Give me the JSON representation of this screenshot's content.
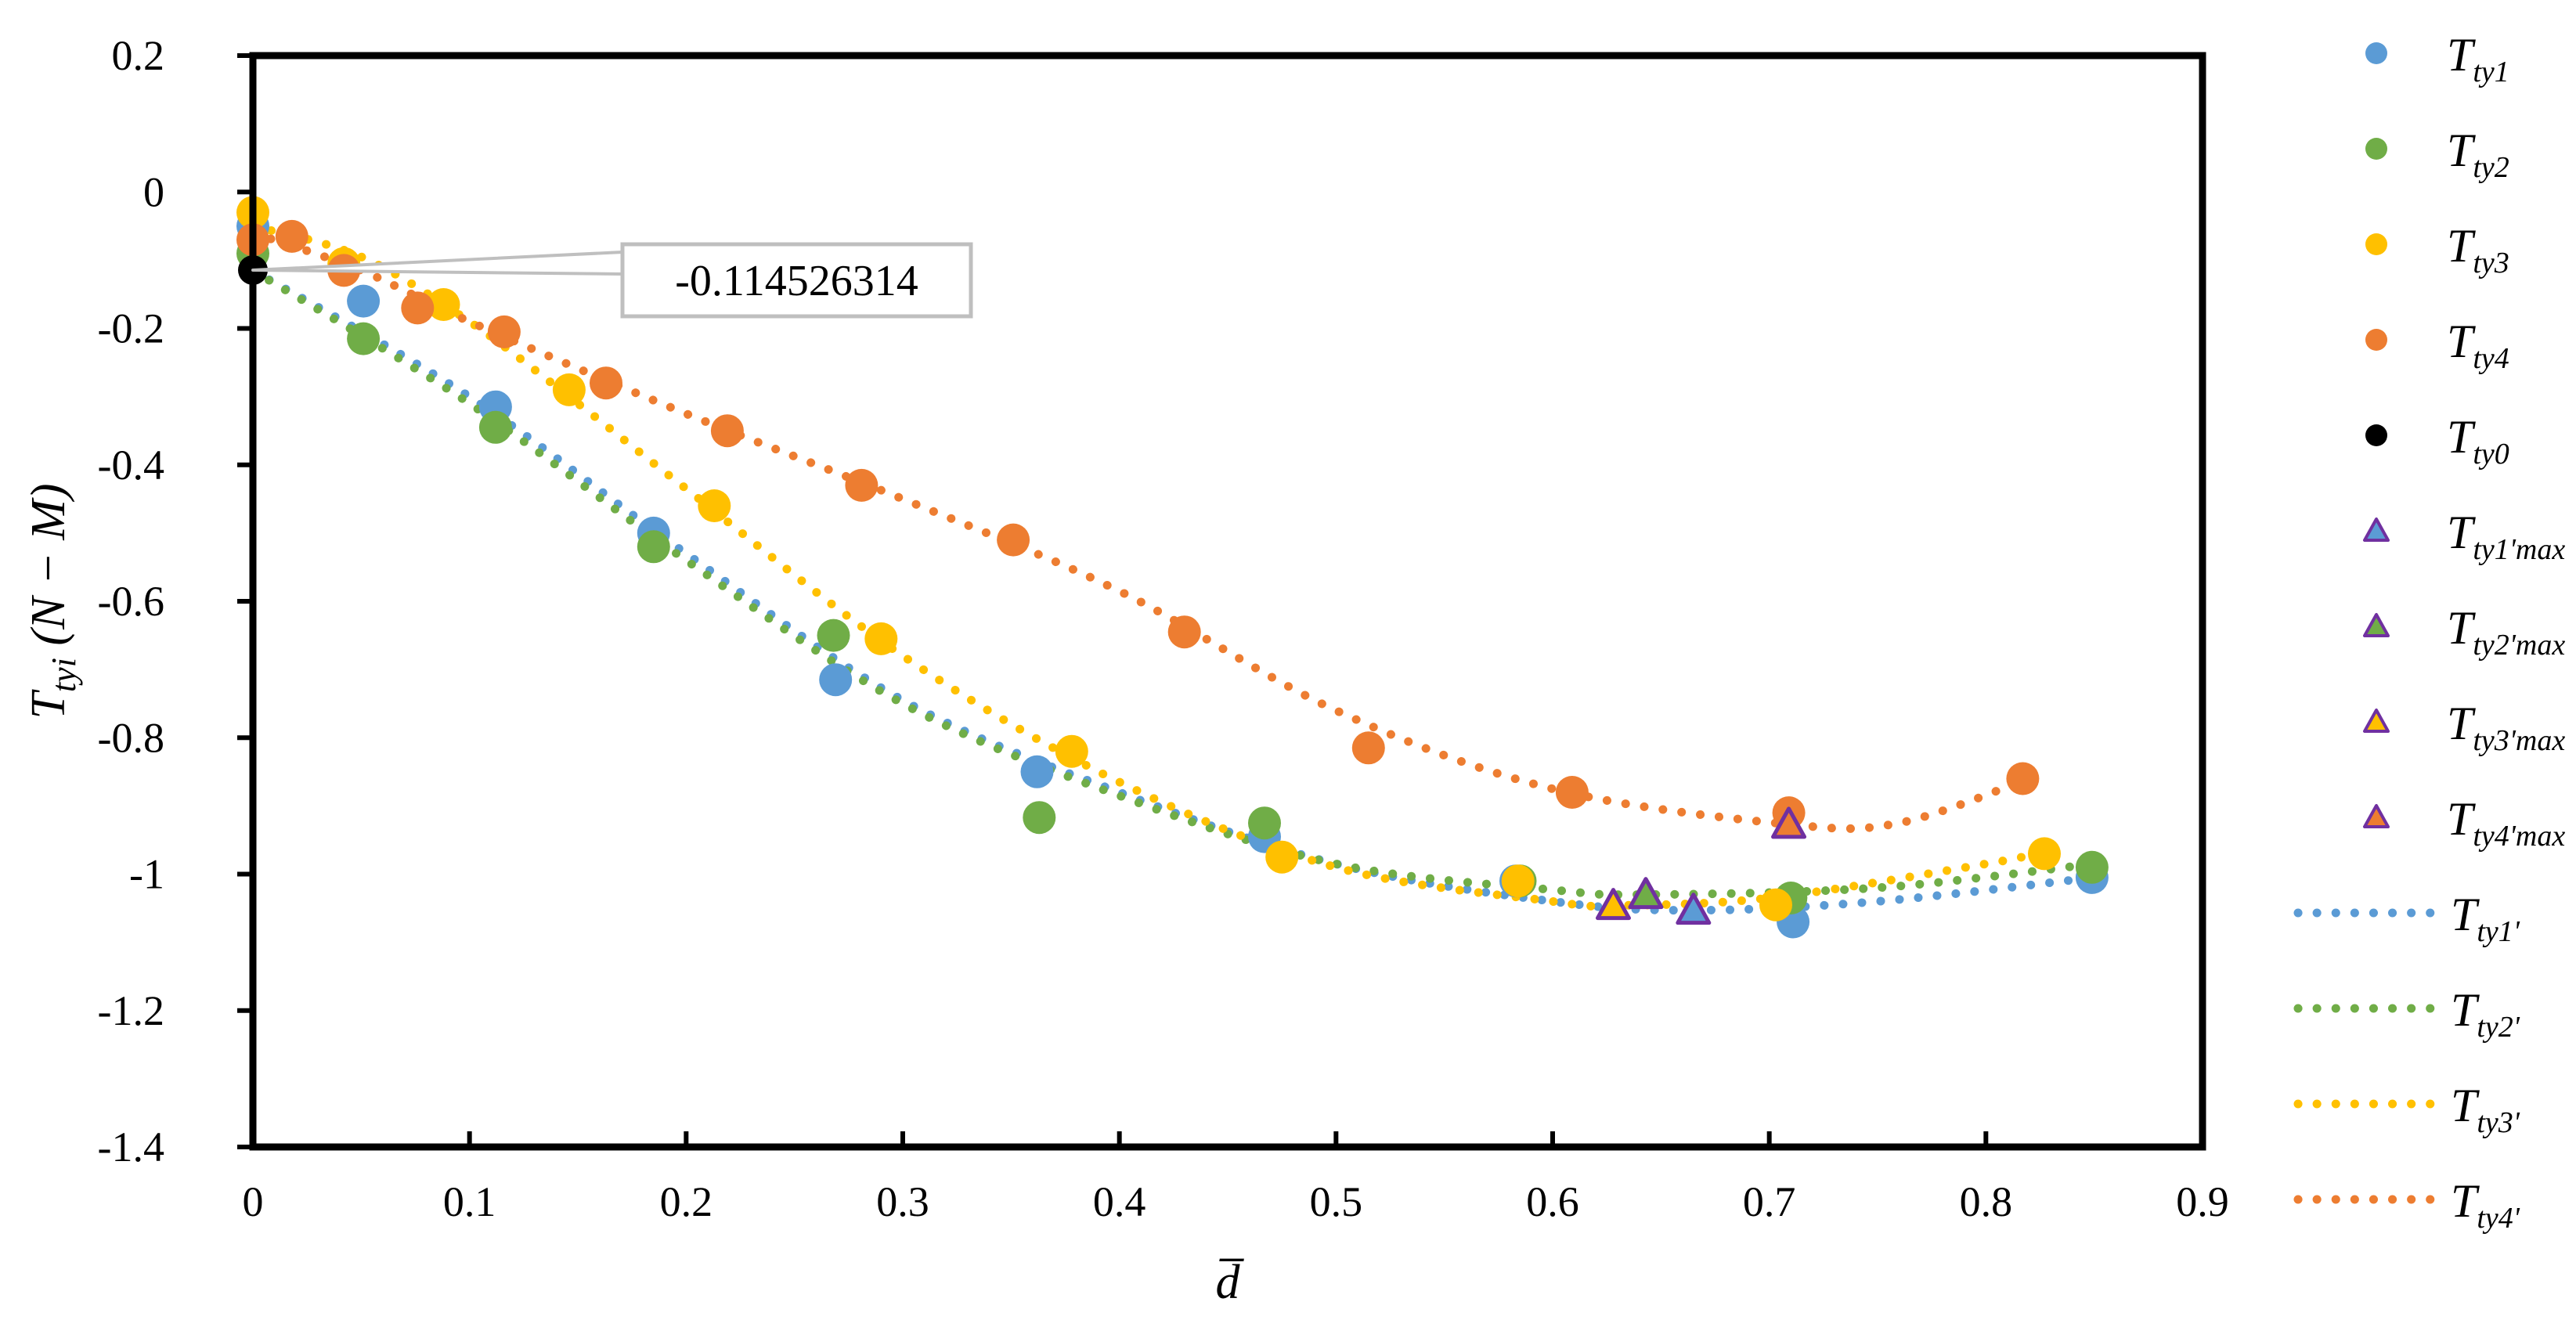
{
  "chart_data": {
    "type": "scatter",
    "xlabel": "d̅",
    "ylabel": "T_tyi (N − M)",
    "xlim": [
      0,
      0.9
    ],
    "ylim": [
      -1.4,
      0.2
    ],
    "xticks": [
      0,
      0.1,
      0.2,
      0.3,
      0.4,
      0.5,
      0.6,
      0.7,
      0.8,
      0.9
    ],
    "yticks": [
      0.2,
      0,
      -0.2,
      -0.4,
      -0.6,
      -0.8,
      -1,
      -1.2,
      -1.4
    ],
    "xtick_labels": [
      "0",
      "0.1",
      "0.2",
      "0.3",
      "0.4",
      "0.5",
      "0.6",
      "0.7",
      "0.8",
      "0.9"
    ],
    "ytick_labels": [
      "0.2",
      "0",
      "-0.2",
      "-0.4",
      "-0.6",
      "-0.8",
      "-1",
      "-1.2",
      "-1.4"
    ],
    "grid": false,
    "legend_position": "right",
    "colors": {
      "blue": "#5B9BD5",
      "green": "#70AD47",
      "yellow": "#FFC000",
      "orange": "#ED7D31",
      "black": "#000000",
      "purple": "#7030A0"
    },
    "series": [
      {
        "name": "Tty1",
        "main": "T",
        "sub": "ty1",
        "kind": "points",
        "color": "#5B9BD5",
        "x": [
          0,
          0.051,
          0.112,
          0.185,
          0.269,
          0.362,
          0.467,
          0.583,
          0.711,
          0.849
        ],
        "y": [
          -0.05,
          -0.16,
          -0.315,
          -0.5,
          -0.715,
          -0.85,
          -0.945,
          -1.01,
          -1.07,
          -1.005
        ]
      },
      {
        "name": "Tty2",
        "main": "T",
        "sub": "ty2",
        "kind": "points",
        "color": "#70AD47",
        "x": [
          0,
          0.051,
          0.112,
          0.185,
          0.268,
          0.363,
          0.467,
          0.585,
          0.71,
          0.849
        ],
        "y": [
          -0.09,
          -0.215,
          -0.345,
          -0.52,
          -0.65,
          -0.917,
          -0.925,
          -1.01,
          -1.035,
          -0.99
        ]
      },
      {
        "name": "Tty3",
        "main": "T",
        "sub": "ty3",
        "kind": "points",
        "color": "#FFC000",
        "x": [
          0,
          0.042,
          0.088,
          0.146,
          0.213,
          0.29,
          0.378,
          0.475,
          0.584,
          0.703,
          0.827
        ],
        "y": [
          -0.03,
          -0.105,
          -0.165,
          -0.29,
          -0.46,
          -0.655,
          -0.82,
          -0.975,
          -1.01,
          -1.045,
          -0.97
        ]
      },
      {
        "name": "Tty4",
        "main": "T",
        "sub": "ty4",
        "kind": "points",
        "color": "#ED7D31",
        "x": [
          0,
          0.018,
          0.042,
          0.076,
          0.116,
          0.163,
          0.219,
          0.281,
          0.351,
          0.43,
          0.515,
          0.609,
          0.709,
          0.817
        ],
        "y": [
          -0.07,
          -0.065,
          -0.115,
          -0.17,
          -0.205,
          -0.28,
          -0.35,
          -0.43,
          -0.51,
          -0.645,
          -0.815,
          -0.88,
          -0.91,
          -0.86
        ]
      },
      {
        "name": "Tty0",
        "main": "T",
        "sub": "ty0",
        "kind": "points",
        "color": "#000000",
        "x": [
          0
        ],
        "y": [
          -0.114526314
        ]
      },
      {
        "name": "Tty1'max",
        "main": "T",
        "sub": "ty1'max",
        "kind": "triangle",
        "color": "#7030A0",
        "fill": "#5B9BD5",
        "x": [
          0.665
        ],
        "y": [
          -1.053
        ]
      },
      {
        "name": "Tty2'max",
        "main": "T",
        "sub": "ty2'max",
        "kind": "triangle",
        "color": "#7030A0",
        "fill": "#70AD47",
        "x": [
          0.643
        ],
        "y": [
          -1.03
        ]
      },
      {
        "name": "Tty3'max",
        "main": "T",
        "sub": "ty3'max",
        "kind": "triangle",
        "color": "#7030A0",
        "fill": "#FFC000",
        "x": [
          0.628
        ],
        "y": [
          -1.046
        ]
      },
      {
        "name": "Tty4'max",
        "main": "T",
        "sub": "ty4'max",
        "kind": "triangle",
        "color": "#7030A0",
        "fill": "#ED7D31",
        "x": [
          0.709
        ],
        "y": [
          -0.927
        ]
      },
      {
        "name": "Tty1'",
        "main": "T",
        "sub": "ty1'",
        "kind": "trend",
        "color": "#5B9BD5",
        "x": [
          0,
          0.1,
          0.2,
          0.3,
          0.4,
          0.5,
          0.6,
          0.665,
          0.75,
          0.85
        ],
        "y": [
          -0.115,
          -0.3,
          -0.53,
          -0.745,
          -0.88,
          -0.985,
          -1.04,
          -1.053,
          -1.04,
          -1.005
        ]
      },
      {
        "name": "Tty2'",
        "main": "T",
        "sub": "ty2'",
        "kind": "trend",
        "color": "#70AD47",
        "x": [
          0,
          0.1,
          0.2,
          0.3,
          0.4,
          0.5,
          0.6,
          0.643,
          0.75,
          0.85
        ],
        "y": [
          -0.115,
          -0.31,
          -0.54,
          -0.75,
          -0.885,
          -0.985,
          -1.023,
          -1.03,
          -1.02,
          -0.985
        ]
      },
      {
        "name": "Tty3'",
        "main": "T",
        "sub": "ty3'",
        "kind": "trend",
        "color": "#FFC000",
        "x": [
          0,
          0.05,
          0.1,
          0.15,
          0.2,
          0.3,
          0.4,
          0.5,
          0.6,
          0.628,
          0.7,
          0.8,
          0.83
        ],
        "y": [
          -0.05,
          -0.095,
          -0.19,
          -0.31,
          -0.435,
          -0.68,
          -0.865,
          -0.99,
          -1.04,
          -1.046,
          -1.035,
          -0.985,
          -0.965
        ]
      },
      {
        "name": "Tty4'",
        "main": "T",
        "sub": "ty4'",
        "kind": "trend",
        "color": "#ED7D31",
        "x": [
          0,
          0.05,
          0.1,
          0.2,
          0.3,
          0.4,
          0.5,
          0.6,
          0.709,
          0.76,
          0.82
        ],
        "y": [
          -0.06,
          -0.115,
          -0.19,
          -0.325,
          -0.45,
          -0.585,
          -0.76,
          -0.875,
          -0.927,
          -0.925,
          -0.86
        ]
      }
    ],
    "annotations": [
      {
        "text": "-0.114526314",
        "x": 0,
        "y": -0.114526314
      }
    ]
  }
}
